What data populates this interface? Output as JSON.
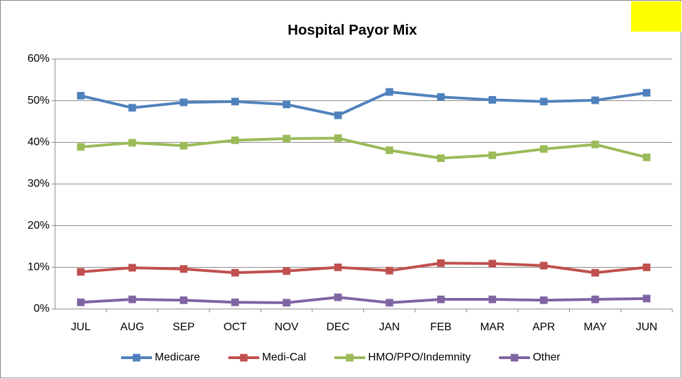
{
  "chart_data": {
    "type": "line",
    "title": "Hospital Payor Mix",
    "categories": [
      "JUL",
      "AUG",
      "SEP",
      "OCT",
      "NOV",
      "DEC",
      "JAN",
      "FEB",
      "MAR",
      "APR",
      "MAY",
      "JUN"
    ],
    "series": [
      {
        "name": "Medicare",
        "color": "#4f81bd",
        "values": [
          51.2,
          48.3,
          49.6,
          49.8,
          49.1,
          46.5,
          52.1,
          50.9,
          50.2,
          49.8,
          50.1,
          51.9
        ]
      },
      {
        "name": "Medi-Cal",
        "color": "#c0504d",
        "values": [
          8.9,
          9.9,
          9.6,
          8.7,
          9.1,
          10.0,
          9.2,
          11.0,
          10.9,
          10.4,
          8.7,
          10.0
        ]
      },
      {
        "name": "HMO/PPO/Indemnity",
        "color": "#9bbb59",
        "values": [
          38.9,
          39.9,
          39.2,
          40.5,
          40.9,
          41.0,
          38.1,
          36.2,
          36.9,
          38.4,
          39.5,
          36.4
        ]
      },
      {
        "name": "Other",
        "color": "#8064a2",
        "values": [
          1.6,
          2.3,
          2.1,
          1.6,
          1.5,
          2.8,
          1.5,
          2.3,
          2.3,
          2.1,
          2.3,
          2.5
        ]
      }
    ],
    "ylim": [
      0,
      60
    ],
    "yticks": [
      {
        "value": 0,
        "label": "0%"
      },
      {
        "value": 10,
        "label": "10%"
      },
      {
        "value": 20,
        "label": "20%"
      },
      {
        "value": 30,
        "label": "30%"
      },
      {
        "value": 40,
        "label": "40%"
      },
      {
        "value": 50,
        "label": "50%"
      },
      {
        "value": 60,
        "label": "60%"
      }
    ],
    "grid": true,
    "legend": "bottom"
  }
}
